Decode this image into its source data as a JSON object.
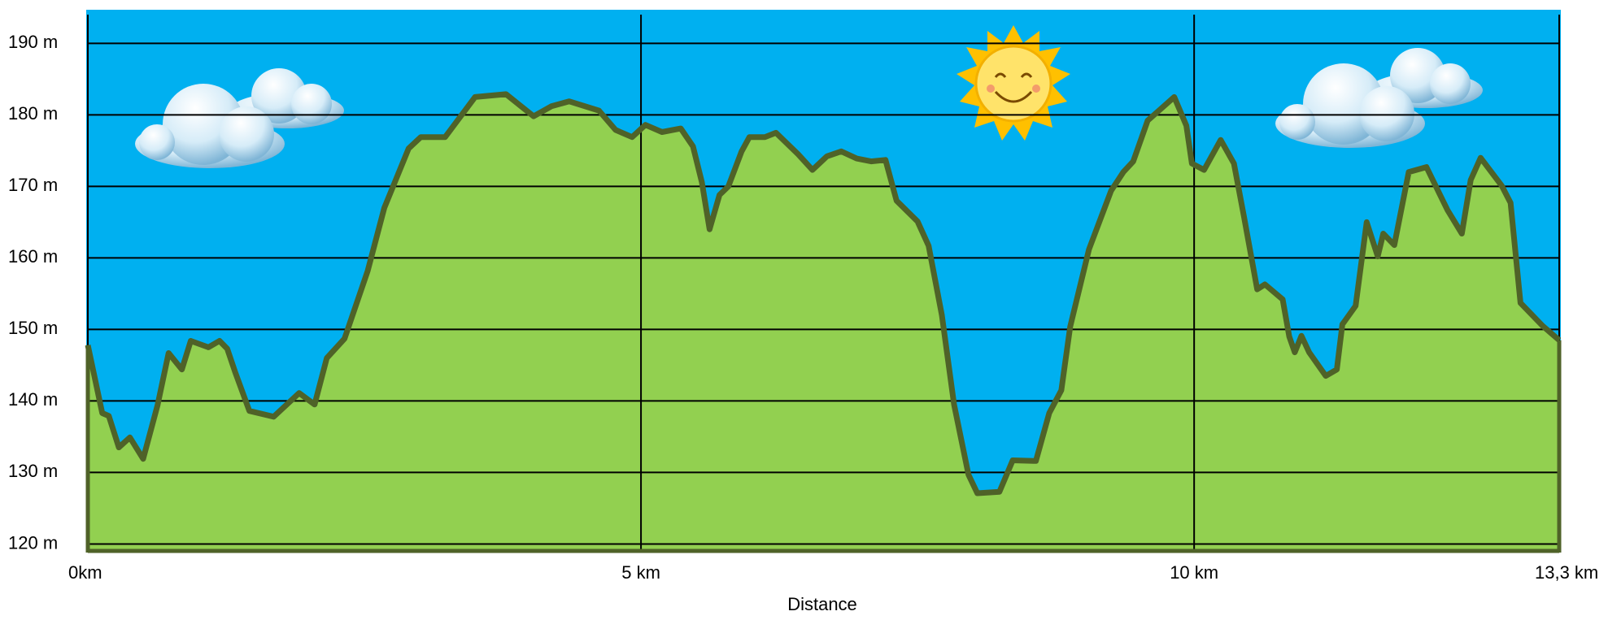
{
  "chart_data": {
    "type": "area",
    "x_label": "Distance",
    "x": [
      0,
      0.13,
      0.19,
      0.28,
      0.38,
      0.5,
      0.63,
      0.73,
      0.85,
      0.93,
      1.09,
      1.19,
      1.26,
      1.33,
      1.46,
      1.68,
      1.91,
      2.05,
      2.16,
      2.32,
      2.53,
      2.68,
      2.9,
      3.01,
      3.23,
      3.5,
      3.78,
      4.03,
      4.19,
      4.35,
      4.62,
      4.77,
      4.92,
      5.04,
      5.19,
      5.36,
      5.47,
      5.55,
      5.62,
      5.71,
      5.79,
      5.91,
      5.98,
      6.12,
      6.22,
      6.42,
      6.55,
      6.68,
      6.81,
      6.95,
      7.08,
      7.21,
      7.31,
      7.5,
      7.6,
      7.72,
      7.83,
      7.96,
      8.04,
      8.24,
      8.36,
      8.57,
      8.69,
      8.8,
      8.88,
      9.05,
      9.25,
      9.36,
      9.45,
      9.58,
      9.82,
      9.93,
      9.98,
      10.09,
      10.24,
      10.36,
      10.45,
      10.57,
      10.64,
      10.8,
      10.86,
      10.91,
      10.97,
      11.04,
      11.19,
      11.29,
      11.34,
      11.46,
      11.56,
      11.66,
      11.71,
      11.81,
      11.94,
      12.1,
      12.29,
      12.42,
      12.5,
      12.59,
      12.78,
      12.86,
      12.95,
      13.15,
      13.3
    ],
    "series": [
      {
        "color": "#92d050",
        "line_color": "#4f6228",
        "values": [
          147.8,
          138.3,
          137.9,
          133.5,
          134.9,
          131.9,
          139.4,
          146.7,
          144.4,
          148.4,
          147.5,
          148.4,
          147.3,
          144.1,
          138.6,
          137.8,
          141.1,
          139.5,
          146,
          148.7,
          158.2,
          167,
          175.3,
          176.9,
          176.9,
          182.5,
          182.9,
          179.8,
          181.2,
          181.9,
          180.6,
          177.9,
          176.9,
          178.6,
          177.6,
          178.1,
          175.6,
          170.6,
          164,
          168.8,
          170,
          174.9,
          176.9,
          176.9,
          177.5,
          174.5,
          172.3,
          174.2,
          174.9,
          173.9,
          173.5,
          173.7,
          168,
          165.1,
          161.7,
          152,
          139.5,
          129.7,
          127.1,
          127.3,
          131.7,
          131.6,
          138.3,
          141.5,
          150.4,
          161.2,
          169.4,
          172,
          173.5,
          179.2,
          182.5,
          178.5,
          173.2,
          172.3,
          176.5,
          173.2,
          165.8,
          155.6,
          156.3,
          154.2,
          149,
          146.8,
          149.1,
          146.8,
          143.5,
          144.4,
          150.7,
          153.3,
          165,
          160.2,
          163.4,
          161.8,
          172,
          172.7,
          166.7,
          163.4,
          170.9,
          174,
          170.1,
          167.7,
          153.7,
          150.5,
          148.5
        ]
      }
    ],
    "xlim": [
      0,
      13.3
    ],
    "xticks": [
      {
        "value": 0,
        "label": "0km"
      },
      {
        "value": 5,
        "label": "5 km"
      },
      {
        "value": 10,
        "label": "10 km"
      },
      {
        "value": 13.3,
        "label": "13,3 km"
      }
    ],
    "ylim": [
      118.8,
      194.7
    ],
    "yticks": [
      {
        "value": 120,
        "label": "120 m"
      },
      {
        "value": 130,
        "label": "130 m"
      },
      {
        "value": 140,
        "label": "140 m"
      },
      {
        "value": 150,
        "label": "150 m"
      },
      {
        "value": 160,
        "label": "160 m"
      },
      {
        "value": 170,
        "label": "170 m"
      },
      {
        "value": 180,
        "label": "180 m"
      },
      {
        "value": 190,
        "label": "190 m"
      }
    ],
    "grid": true,
    "background": "#00b0f0"
  }
}
